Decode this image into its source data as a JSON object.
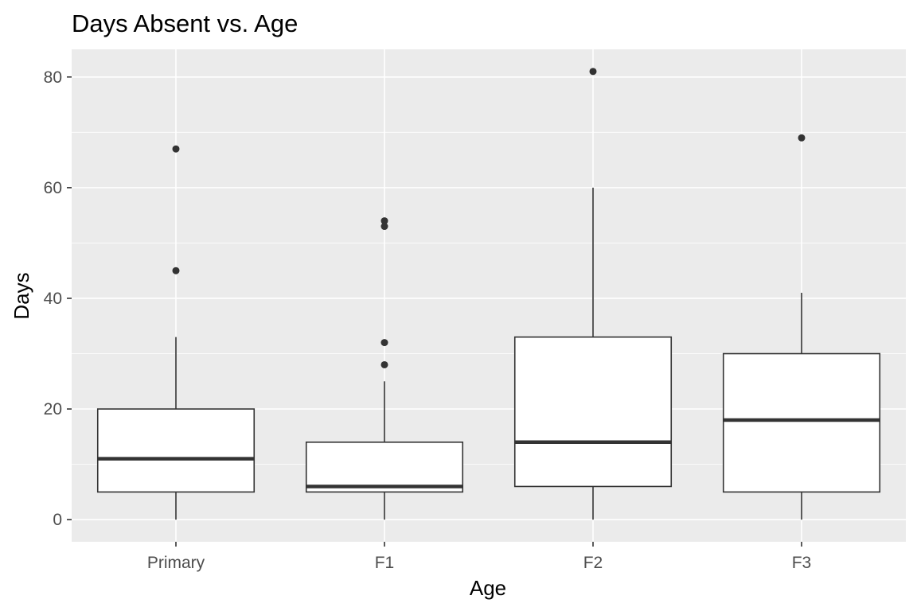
{
  "chart_data": {
    "type": "box",
    "title": "Days Absent vs. Age",
    "xlabel": "Age",
    "ylabel": "Days",
    "categories": [
      "Primary",
      "F1",
      "F2",
      "F3"
    ],
    "ylim": [
      -4,
      85
    ],
    "yticks": [
      0,
      20,
      40,
      60,
      80
    ],
    "grid": true,
    "legend": "none",
    "boxes": [
      {
        "category": "Primary",
        "min": 0,
        "q1": 5,
        "median": 11,
        "q3": 20,
        "max": 33,
        "outliers": [
          45,
          67
        ]
      },
      {
        "category": "F1",
        "min": 0,
        "q1": 5,
        "median": 6,
        "q3": 14,
        "max": 25,
        "outliers": [
          28,
          32,
          53,
          54
        ]
      },
      {
        "category": "F2",
        "min": 0,
        "q1": 6,
        "median": 14,
        "q3": 33,
        "max": 60,
        "outliers": [
          81
        ]
      },
      {
        "category": "F3",
        "min": 0,
        "q1": 5,
        "median": 18,
        "q3": 30,
        "max": 41,
        "outliers": [
          69
        ]
      }
    ],
    "colors": {
      "panel": "#ebebeb",
      "grid": "#ffffff",
      "box_fill": "#ffffff",
      "box_line": "#333333",
      "tick_text": "#4d4d4d",
      "tick_mark": "#333333"
    }
  }
}
